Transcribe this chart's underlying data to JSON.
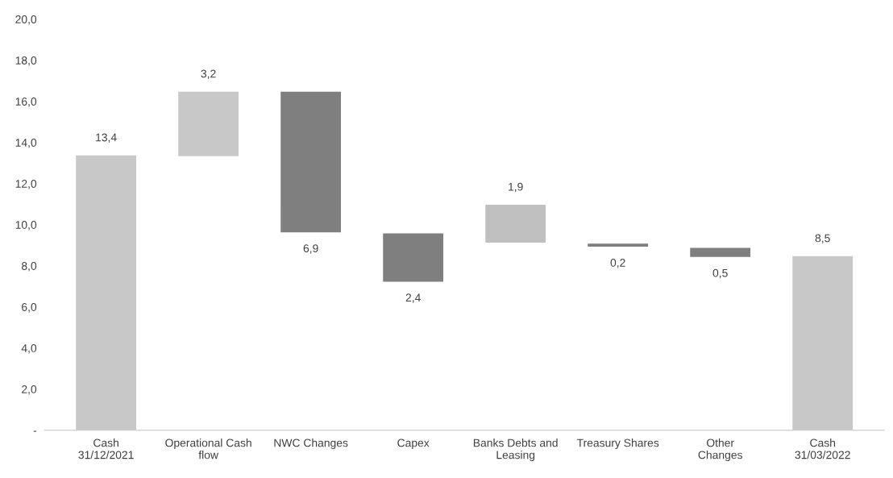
{
  "chart_data": {
    "type": "bar",
    "categories": [
      "Cash\n31/12/2021",
      "Operational Cash\nflow",
      "NWC Changes",
      "Capex",
      "Banks Debts and\nLeasing",
      "Treasury Shares",
      "Other\nChanges",
      "Cash\n31/03/2022"
    ],
    "base": [
      0,
      13.3,
      16.5,
      9.6,
      9.1,
      9.1,
      8.9,
      0
    ],
    "values": [
      13.4,
      3.2,
      -6.9,
      -2.4,
      1.9,
      -0.2,
      -0.5,
      8.5
    ],
    "value_labels": [
      "13,4",
      "3,2",
      "6,9",
      "2,4",
      "1,9",
      "0,2",
      "0,5",
      "8,5"
    ],
    "colors": [
      "#c8c8c8",
      "#c8c8c8",
      "#7f7f7f",
      "#7f7f7f",
      "#c0c0c0",
      "#7f7f7f",
      "#7f7f7f",
      "#c8c8c8"
    ],
    "ylim": [
      0,
      20
    ],
    "yticks": [
      {
        "value": 0,
        "label": "-"
      },
      {
        "value": 2,
        "label": "2,0"
      },
      {
        "value": 4,
        "label": "4,0"
      },
      {
        "value": 6,
        "label": "6,0"
      },
      {
        "value": 8,
        "label": "8,0"
      },
      {
        "value": 10,
        "label": "10,0"
      },
      {
        "value": 12,
        "label": "12,0"
      },
      {
        "value": 14,
        "label": "14,0"
      },
      {
        "value": 16,
        "label": "16,0"
      },
      {
        "value": 18,
        "label": "18,0"
      },
      {
        "value": 20,
        "label": "20,0"
      }
    ],
    "grid": false
  }
}
